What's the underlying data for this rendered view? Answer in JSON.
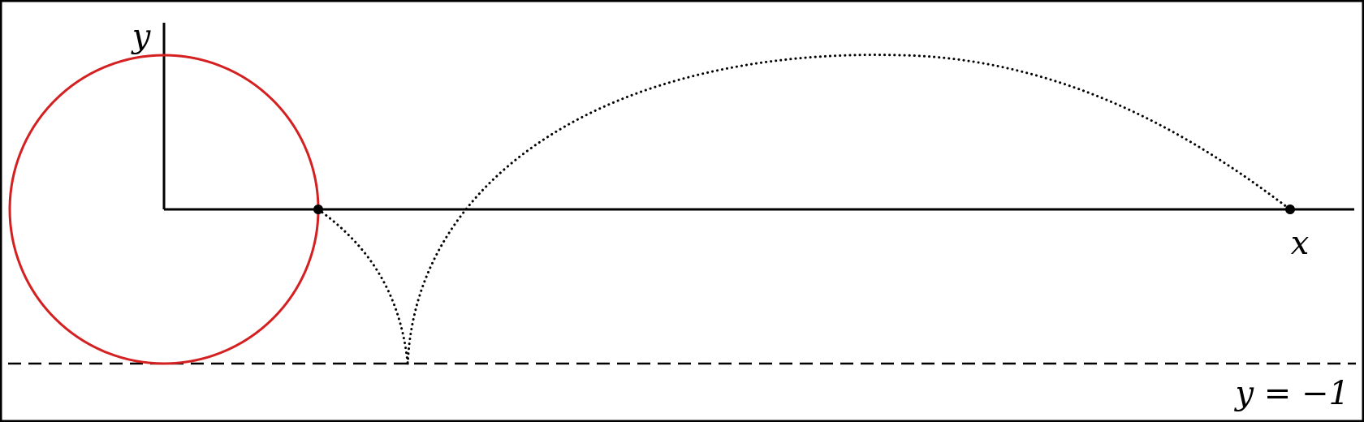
{
  "diagram": {
    "labels": {
      "y_axis": "y",
      "x_axis": "x",
      "line_equation": "y = −1"
    },
    "geometry": {
      "circle": {
        "center": [
          0,
          0
        ],
        "radius": 1
      },
      "dashed_line_y": -1,
      "marked_points": [
        [
          1,
          0
        ],
        [
          7.3,
          0
        ]
      ],
      "cusp_point": [
        1.58,
        -1
      ],
      "arc_peak_y": 1
    },
    "colors": {
      "circle": "#d42020",
      "axes": "#000000",
      "curves": "#000000"
    }
  }
}
